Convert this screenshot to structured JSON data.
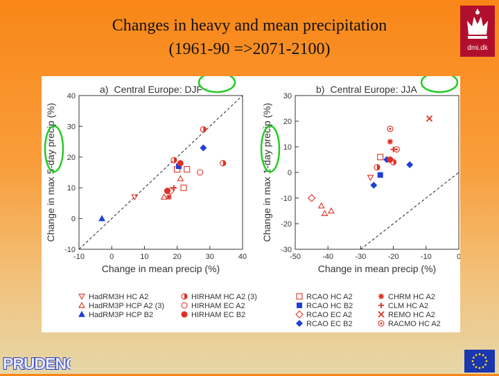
{
  "page": {
    "title_line1": "Changes in heavy and mean precipitation",
    "title_line2": "(1961-90 =>2071-2100)",
    "logo_text": "dmi.dk",
    "banner_text": "PRUDENCE"
  },
  "colors": {
    "red": "#e03024",
    "blue": "#1f3fd6",
    "dashed": "#222222",
    "circle": "#22cc22"
  },
  "chart_data": [
    {
      "type": "scatter",
      "panel_label": "a)",
      "title": "Central Europe: DJF",
      "xlabel": "Change in mean precip (%)",
      "ylabel": "Change in max 5-day precip (%)",
      "xlim": [
        -10,
        40
      ],
      "ylim": [
        -10,
        40
      ],
      "xticks": [
        -10,
        0,
        10,
        20,
        30,
        40
      ],
      "yticks": [
        -10,
        0,
        10,
        20,
        30,
        40
      ],
      "one_to_one_line": true,
      "points": [
        {
          "x": -3,
          "y": 0,
          "model": "HadRM3P HCP B2"
        },
        {
          "x": 7,
          "y": 7,
          "model": "HadRM3H HC A2"
        },
        {
          "x": 16,
          "y": 7,
          "model": "HadRM3P HCP A2 (3)"
        },
        {
          "x": 17,
          "y": 9,
          "model": "HIRHAM EC B2"
        },
        {
          "x": 17.5,
          "y": 7,
          "model": "CHRM HC A2"
        },
        {
          "x": 18,
          "y": 9,
          "model": "RCAO EC A2"
        },
        {
          "x": 19,
          "y": 10,
          "model": "CLM HC A2"
        },
        {
          "x": 19,
          "y": 19,
          "model": "HIRHAM HC A2 (3)"
        },
        {
          "x": 20,
          "y": 16,
          "model": "RCAO HC A2"
        },
        {
          "x": 20.5,
          "y": 17,
          "model": "RCAO HC B2"
        },
        {
          "x": 21,
          "y": 18,
          "model": "HIRHAM EC B2"
        },
        {
          "x": 21,
          "y": 13,
          "model": "HadRM3P HCP A2 (3)"
        },
        {
          "x": 22,
          "y": 10,
          "model": "RCAO HC A2"
        },
        {
          "x": 23,
          "y": 16,
          "model": "RCAO HC A2"
        },
        {
          "x": 27,
          "y": 15,
          "model": "HIRHAM EC A2"
        },
        {
          "x": 28,
          "y": 29,
          "model": "HIRHAM HC A2 (3)"
        },
        {
          "x": 28,
          "y": 23,
          "model": "RCAO EC B2"
        },
        {
          "x": 34,
          "y": 18,
          "model": "HIRHAM HC A2 (3)"
        }
      ]
    },
    {
      "type": "scatter",
      "panel_label": "b)",
      "title": "Central Europe: JJA",
      "xlabel": "Change in mean precip (%)",
      "ylabel": "Change in max 1-day precip (%)",
      "xlim": [
        -50,
        0
      ],
      "ylim": [
        -30,
        30
      ],
      "xticks": [
        -50,
        -40,
        -30,
        -20,
        -10,
        0
      ],
      "yticks": [
        -30,
        -20,
        -10,
        0,
        10,
        20,
        30
      ],
      "one_to_one_line": true,
      "points": [
        {
          "x": -45,
          "y": -10,
          "model": "RCAO EC A2"
        },
        {
          "x": -42,
          "y": -13,
          "model": "HadRM3P HCP A2 (3)"
        },
        {
          "x": -41,
          "y": -16,
          "model": "HadRM3P HCP A2 (3)"
        },
        {
          "x": -39,
          "y": -15,
          "model": "HadRM3P HCP A2 (3)"
        },
        {
          "x": -27,
          "y": -2,
          "model": "HadRM3H HC A2"
        },
        {
          "x": -26,
          "y": -5,
          "model": "RCAO EC B2"
        },
        {
          "x": -25,
          "y": 2,
          "model": "HIRHAM HC A2 (3)"
        },
        {
          "x": -24,
          "y": 6,
          "model": "RCAO HC A2"
        },
        {
          "x": -24,
          "y": -1,
          "model": "RCAO HC B2"
        },
        {
          "x": -22,
          "y": 5,
          "model": "RCAO EC B2"
        },
        {
          "x": -21,
          "y": 5,
          "model": "HIRHAM EC B2"
        },
        {
          "x": -20,
          "y": 4,
          "model": "HIRHAM HC A2 (3)"
        },
        {
          "x": -21,
          "y": 17,
          "model": "RACMO HC A2"
        },
        {
          "x": -21,
          "y": 12,
          "model": "CHRM HC A2"
        },
        {
          "x": -20,
          "y": 9,
          "model": "CLM HC A2"
        },
        {
          "x": -19,
          "y": 9,
          "model": "RACMO HC A2"
        },
        {
          "x": -15,
          "y": 3,
          "model": "RCAO EC B2"
        },
        {
          "x": -9,
          "y": 21,
          "model": "REMO HC A2"
        }
      ]
    }
  ],
  "legend": [
    {
      "label": "HadRM3H HC A2",
      "color": "red",
      "marker": "triangle-down-open"
    },
    {
      "label": "HadRM3P HCP A2 (3)",
      "color": "red",
      "marker": "triangle-up-open"
    },
    {
      "label": "HadRM3P HCP B2",
      "color": "blue",
      "marker": "triangle-up-filled"
    },
    {
      "label": "HIRHAM HC A2 (3)",
      "color": "red",
      "marker": "circle-half"
    },
    {
      "label": "HIRHAM EC A2",
      "color": "red",
      "marker": "circle-open"
    },
    {
      "label": "HIRHAM EC B2",
      "color": "red",
      "marker": "circle-filled"
    },
    {
      "label": "RCAO HC A2",
      "color": "red",
      "marker": "square-open"
    },
    {
      "label": "RCAO HC B2",
      "color": "blue",
      "marker": "square-filled"
    },
    {
      "label": "RCAO EC A2",
      "color": "red",
      "marker": "diamond-open"
    },
    {
      "label": "RCAO EC B2",
      "color": "blue",
      "marker": "diamond-filled"
    },
    {
      "label": "CHRM HC A2",
      "color": "red",
      "marker": "asterisk"
    },
    {
      "label": "CLM HC A2",
      "color": "red",
      "marker": "plus"
    },
    {
      "label": "REMO HC A2",
      "color": "red",
      "marker": "x"
    },
    {
      "label": "RACMO HC A2",
      "color": "red",
      "marker": "flower"
    }
  ]
}
